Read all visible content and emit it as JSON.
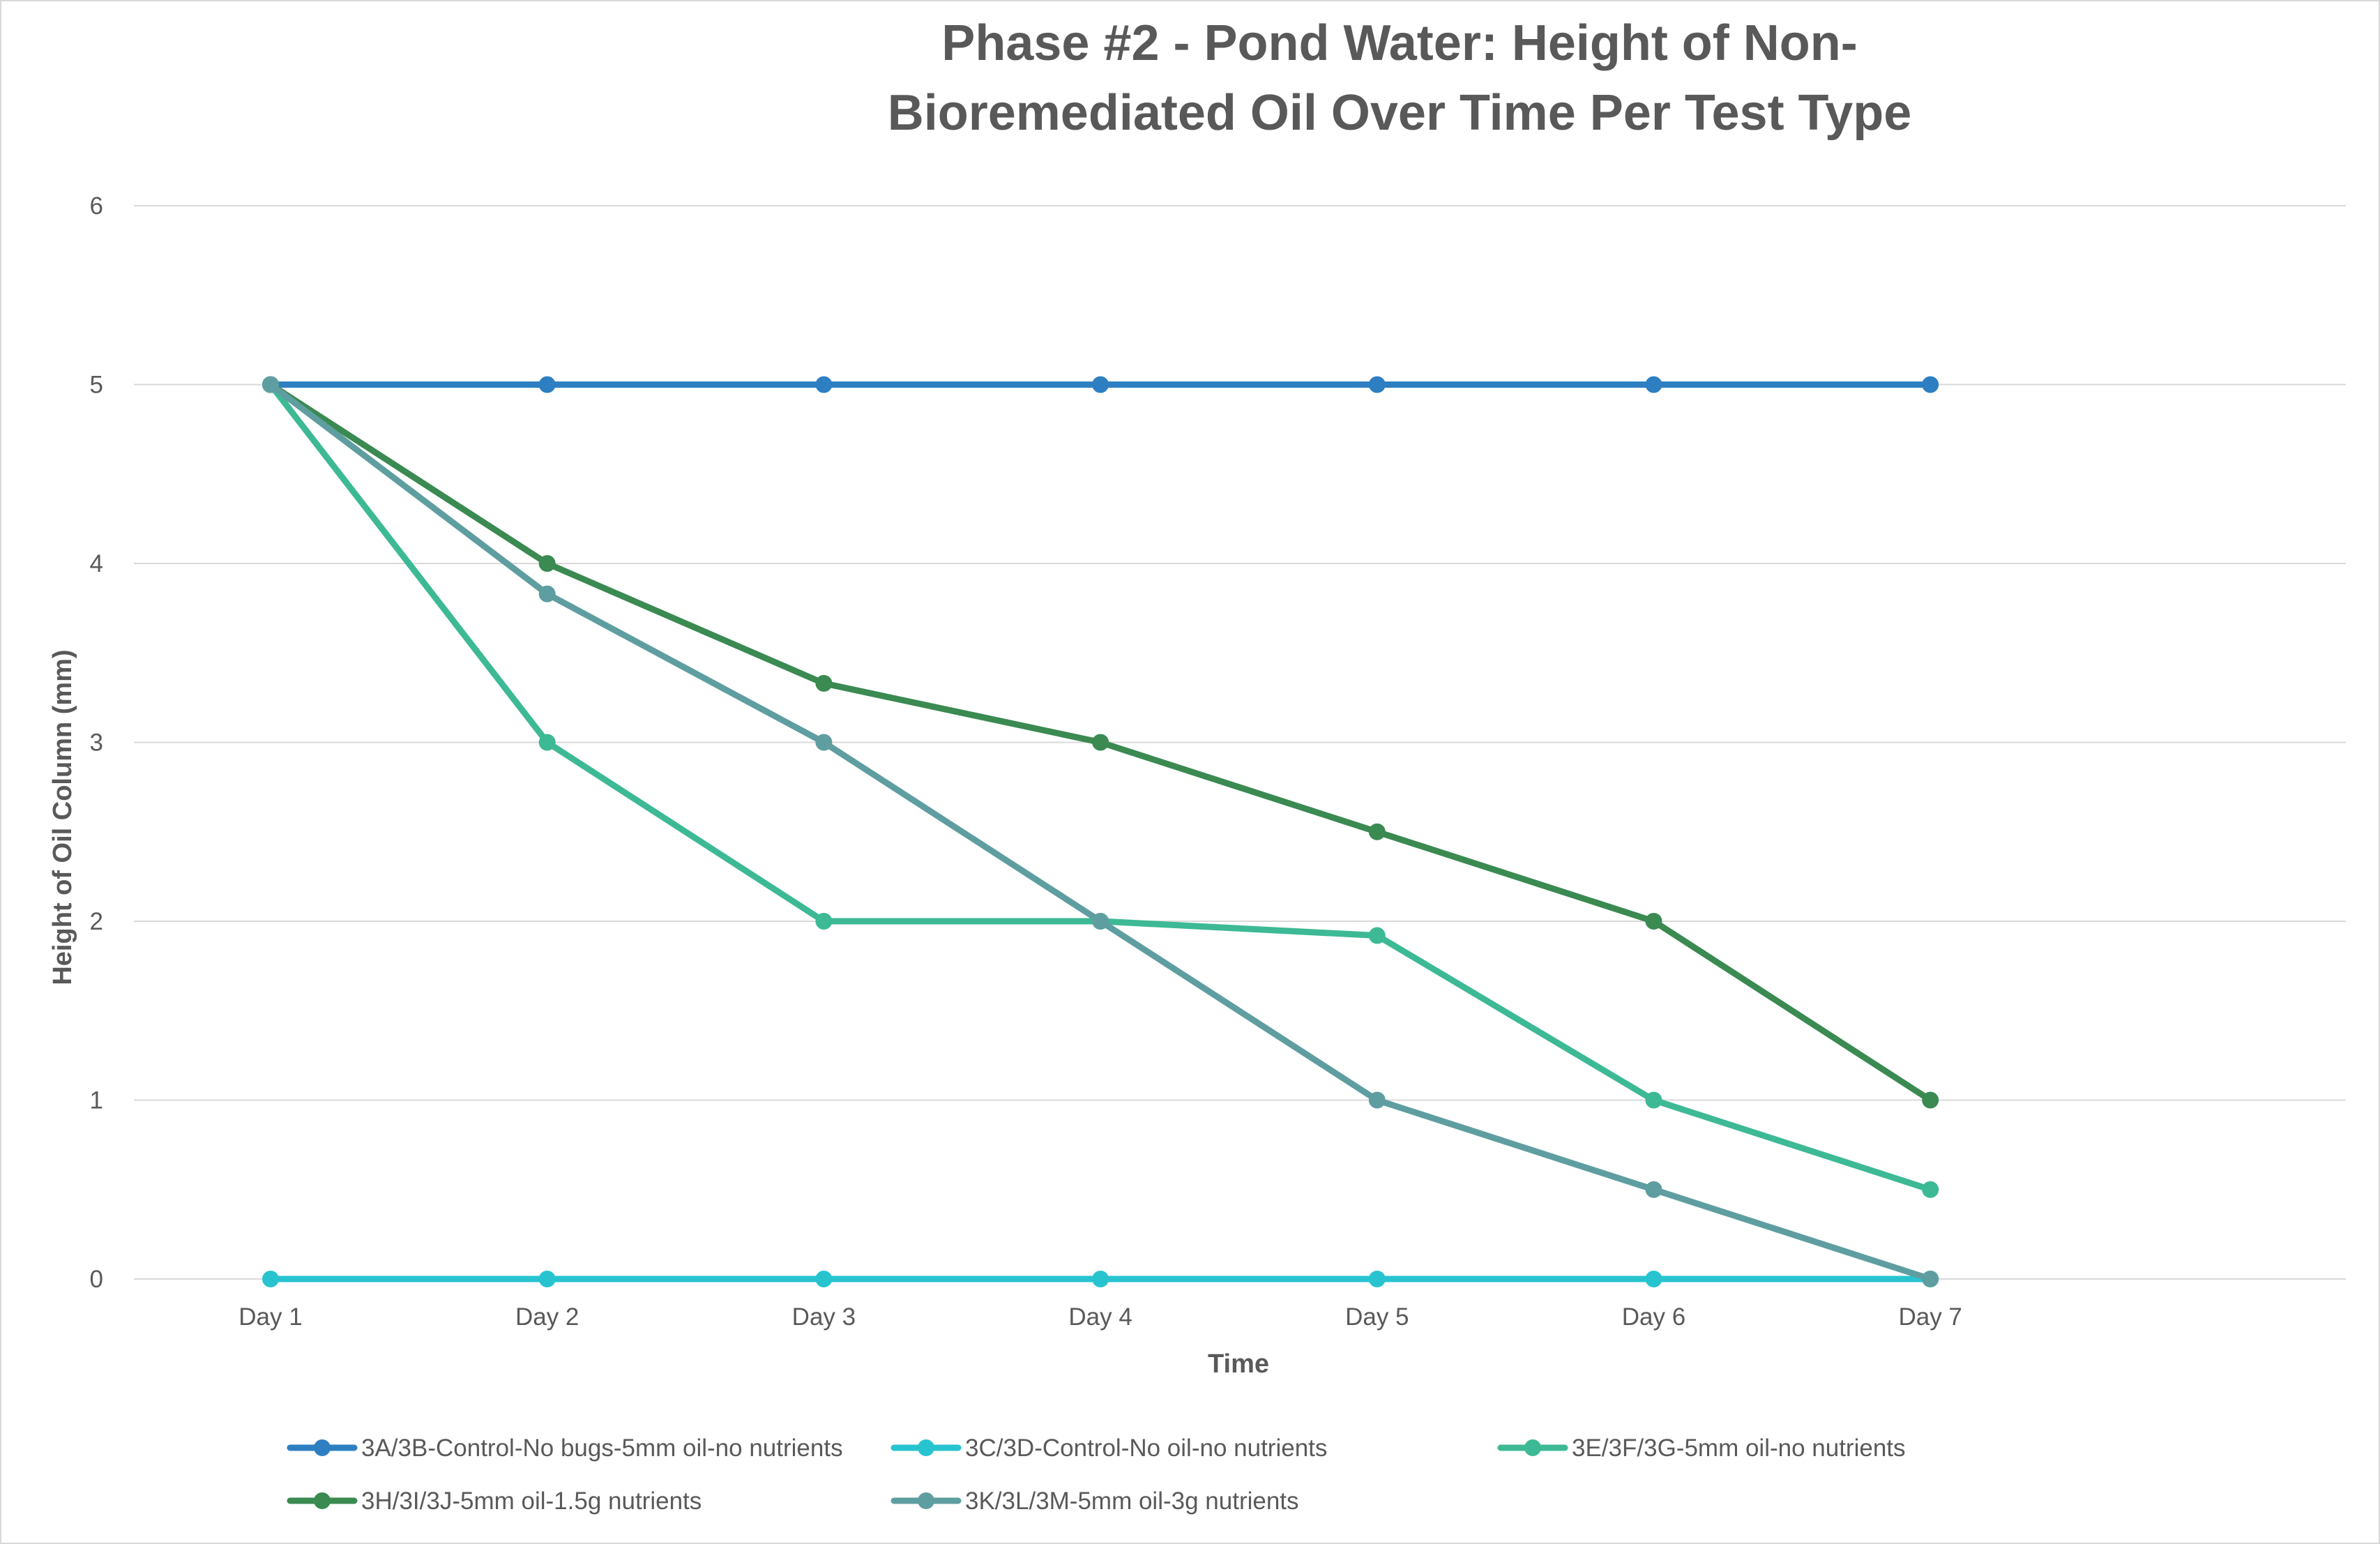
{
  "chart_data": {
    "type": "line",
    "title_lines": [
      "Phase #2 - Pond Water: Height of Non-",
      "Bioremediated Oil Over Time Per Test Type"
    ],
    "xlabel": "Time",
    "ylabel": "Height of Oil Column (mm)",
    "categories": [
      "Day 1",
      "Day 2",
      "Day 3",
      "Day 4",
      "Day 5",
      "Day 6",
      "Day 7"
    ],
    "ylim": [
      0,
      6
    ],
    "yticks": [
      0,
      1,
      2,
      3,
      4,
      5,
      6
    ],
    "grid": true,
    "legend_position": "bottom",
    "series": [
      {
        "name": "3A/3B-Control-No bugs-5mm oil-no nutrients",
        "color": "#2E7FC2",
        "values": [
          5,
          5,
          5,
          5,
          5,
          5,
          5
        ]
      },
      {
        "name": "3C/3D-Control-No oil-no nutrients",
        "color": "#27C4D0",
        "values": [
          0,
          0,
          0,
          0,
          0,
          0,
          0
        ]
      },
      {
        "name": "3E/3F/3G-5mm oil-no nutrients",
        "color": "#3DB995",
        "values": [
          5,
          3,
          2,
          2,
          1.92,
          1,
          0.5
        ]
      },
      {
        "name": "3H/3I/3J-5mm oil-1.5g nutrients",
        "color": "#3A8A52",
        "values": [
          5,
          4,
          3.33,
          3,
          2.5,
          2,
          1
        ]
      },
      {
        "name": "3K/3L/3M-5mm oil-3g nutrients",
        "color": "#5F9EA0",
        "values": [
          5,
          3.83,
          3,
          2,
          1,
          0.5,
          0
        ]
      }
    ]
  }
}
